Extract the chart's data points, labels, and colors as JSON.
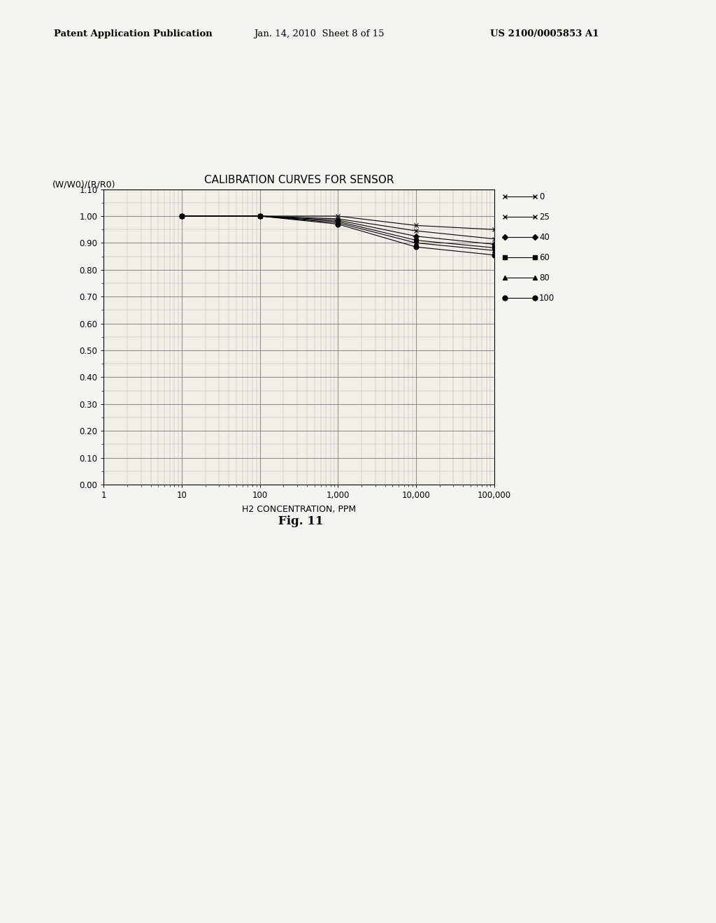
{
  "title": "CALIBRATION CURVES FOR SENSOR",
  "ylabel": "(W/W0)/(R/R0)",
  "xlabel": "H2 CONCENTRATION, PPM",
  "fig_caption": "Fig. 11",
  "header_left": "Patent Application Publication",
  "header_mid": "Jan. 14, 2010  Sheet 8 of 15",
  "header_right": "US 2100/0005853 A1",
  "xlim": [
    1,
    100000
  ],
  "ylim": [
    0.0,
    1.1
  ],
  "yticks": [
    0.0,
    0.1,
    0.2,
    0.3,
    0.4,
    0.5,
    0.6,
    0.7,
    0.8,
    0.9,
    1.0,
    1.1
  ],
  "series": [
    {
      "label": "0",
      "marker": "x",
      "markersize": 5,
      "x": [
        10,
        100,
        1000,
        10000,
        100000
      ],
      "y": [
        1.0,
        1.0,
        1.0,
        0.965,
        0.95
      ]
    },
    {
      "label": "25",
      "marker": "x",
      "markersize": 5,
      "x": [
        10,
        100,
        1000,
        10000,
        100000
      ],
      "y": [
        1.0,
        1.0,
        0.99,
        0.945,
        0.915
      ]
    },
    {
      "label": "40",
      "marker": "D",
      "markersize": 4,
      "x": [
        10,
        100,
        1000,
        10000,
        100000
      ],
      "y": [
        1.0,
        1.0,
        0.985,
        0.925,
        0.895
      ]
    },
    {
      "label": "60",
      "marker": "s",
      "markersize": 4,
      "x": [
        10,
        100,
        1000,
        10000,
        100000
      ],
      "y": [
        1.0,
        1.0,
        0.98,
        0.91,
        0.882
      ]
    },
    {
      "label": "80",
      "marker": "^",
      "markersize": 4,
      "x": [
        10,
        100,
        1000,
        10000,
        100000
      ],
      "y": [
        1.0,
        1.0,
        0.975,
        0.9,
        0.872
      ]
    },
    {
      "label": "100",
      "marker": "o",
      "markersize": 5,
      "x": [
        10,
        100,
        1000,
        10000,
        100000
      ],
      "y": [
        1.0,
        1.0,
        0.97,
        0.885,
        0.855
      ]
    }
  ],
  "background_color": "#f5f5f0",
  "grid_color": "#555555",
  "text_color": "#000000",
  "plot_area_bg": "#f0efe8"
}
